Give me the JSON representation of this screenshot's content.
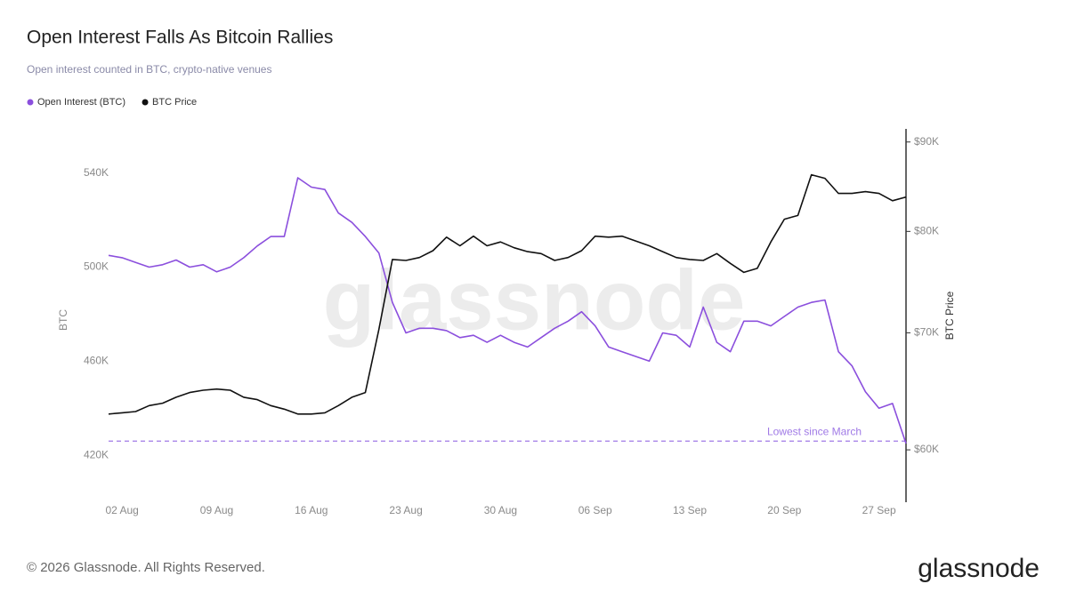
{
  "chart_data": {
    "type": "line",
    "title": "Open Interest Falls As Bitcoin Rallies",
    "subtitle": "Open interest counted in BTC, crypto-native venues",
    "y_label": "BTC",
    "y2_label": "BTC Price",
    "categories": [
      null,
      "02 Aug",
      null,
      null,
      null,
      null,
      null,
      null,
      "09 Aug",
      null,
      null,
      null,
      null,
      null,
      null,
      "16 Aug",
      null,
      null,
      null,
      null,
      null,
      null,
      "23 Aug",
      null,
      null,
      null,
      null,
      null,
      null,
      "30 Aug",
      null,
      null,
      null,
      null,
      null,
      null,
      "06 Sep",
      null,
      null,
      null,
      null,
      null,
      null,
      "13 Sep",
      null,
      null,
      null,
      null,
      null,
      null,
      "20 Sep",
      null,
      null,
      null,
      null,
      null,
      null,
      "27 Sep",
      null,
      null
    ],
    "series": [
      {
        "name": "Open Interest (BTC)",
        "color": "#8b4fdd",
        "axis": "y",
        "values": [
          505000,
          504000,
          502000,
          500000,
          501000,
          503000,
          500000,
          501000,
          498000,
          500000,
          504000,
          509000,
          513000,
          513000,
          538000,
          534000,
          533000,
          523000,
          519000,
          513000,
          506000,
          485000,
          472000,
          474000,
          474000,
          473000,
          470000,
          471000,
          468000,
          471000,
          468000,
          466000,
          470000,
          474000,
          477000,
          481000,
          475000,
          466000,
          464000,
          462000,
          460000,
          472000,
          471000,
          466000,
          483000,
          468000,
          464000,
          477000,
          477000,
          475000,
          479000,
          483000,
          485000,
          486000,
          464000,
          458000,
          447000,
          440000,
          442000,
          425000
        ]
      },
      {
        "name": "BTC Price",
        "color": "#111111",
        "axis": "y2",
        "values": [
          62900,
          63000,
          63100,
          63600,
          63800,
          64300,
          64700,
          64900,
          65000,
          64900,
          64300,
          64100,
          63600,
          63300,
          62900,
          62900,
          63000,
          63600,
          64300,
          64700,
          70300,
          77100,
          77000,
          77300,
          78000,
          79400,
          78500,
          79500,
          78500,
          78900,
          78300,
          77900,
          77700,
          77000,
          77300,
          78000,
          79500,
          79400,
          79500,
          79000,
          78500,
          77900,
          77300,
          77100,
          77000,
          77700,
          76700,
          75800,
          76200,
          78900,
          81300,
          81700,
          86200,
          85800,
          84100,
          84100,
          84300,
          84100,
          83300,
          83700
        ]
      }
    ],
    "ylim": [
      400000,
      555000
    ],
    "yticks": [
      {
        "value": 420000,
        "label": "420K"
      },
      {
        "value": 460000,
        "label": "460K"
      },
      {
        "value": 500000,
        "label": "500K"
      },
      {
        "value": 540000,
        "label": "540K"
      }
    ],
    "y2lim": [
      56000,
      90500
    ],
    "y2log": true,
    "y2ticks": [
      {
        "value": 60000,
        "label": "$60K"
      },
      {
        "value": 70000,
        "label": "$70K"
      },
      {
        "value": 80000,
        "label": "$80K"
      },
      {
        "value": 90000,
        "label": "$90K"
      }
    ],
    "annotation": {
      "text": "Lowest since March",
      "value": 426000,
      "color": "#a07ae6"
    },
    "watermark": "glassnode"
  },
  "footer": "© 2026 Glassnode. All Rights Reserved.",
  "logo": "glassnode"
}
